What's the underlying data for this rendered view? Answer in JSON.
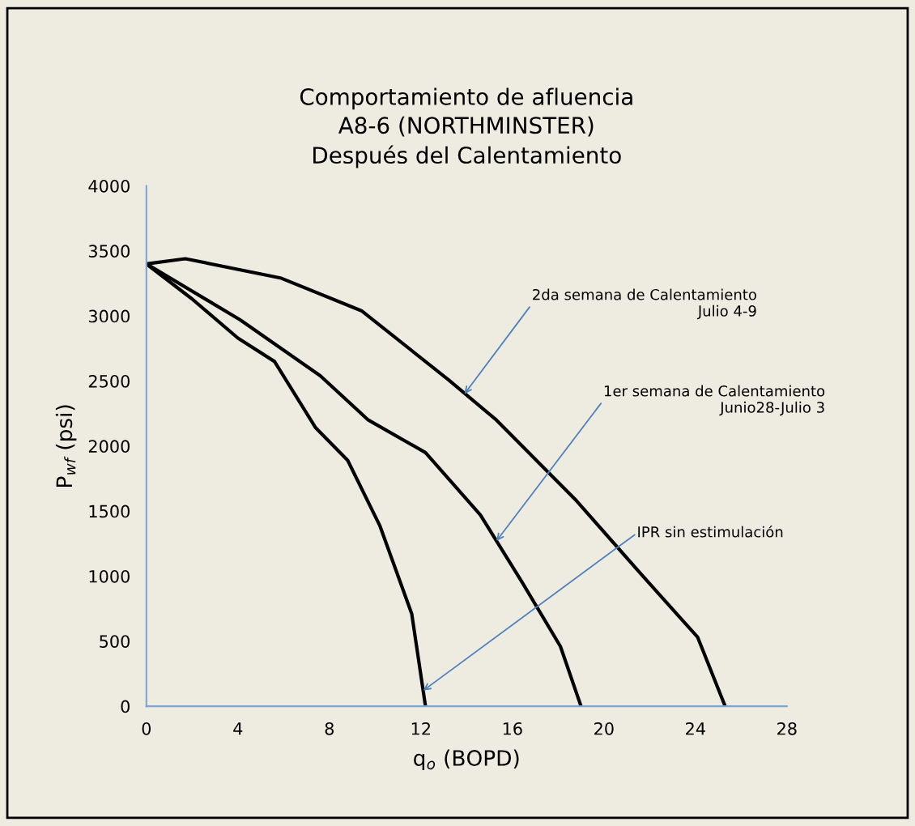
{
  "chart_data": {
    "type": "line",
    "title": "Comportamiento de afluencia\nA8-6 (NORTHMINSTER)\nDespués del Calentamiento",
    "xlabel": "q$_{o}$ (BOPD)",
    "ylabel": "P$_{wf}$ (psi)",
    "series": [
      {
        "color": "#000000",
        "x": [
          0,
          1.7,
          5.9,
          9.4,
          13.2,
          15.3,
          18.8,
          21.6,
          24.1,
          25.3
        ],
        "values": [
          3400,
          3440,
          3290,
          3040,
          2510,
          2200,
          1580,
          1020,
          530,
          0
        ]
      },
      {
        "color": "#000000",
        "x": [
          0,
          4.1,
          7.6,
          9.7,
          12.2,
          14.6,
          16.4,
          18.1,
          19
        ],
        "values": [
          3400,
          2970,
          2540,
          2200,
          1950,
          1470,
          960,
          460,
          0
        ]
      },
      {
        "color": "#000000",
        "x": [
          0,
          2,
          4,
          5.6,
          7.4,
          8.8,
          10.2,
          11.6,
          12.2
        ],
        "values": [
          3400,
          3130,
          2830,
          2650,
          2140,
          1890,
          1390,
          710,
          0
        ]
      }
    ],
    "annotations": [
      {
        "text": "2da semana de Calentamiento\nJulio 4-9",
        "x": 13.9,
        "y": 2400
      },
      {
        "text": "1er semana de Calentamiento\nJunio28-Julio 3",
        "x": 15.3,
        "y": 1270
      },
      {
        "text": "IPR sin estimulación",
        "x": 12.1,
        "y": 120
      }
    ],
    "xlim": [
      0,
      28
    ],
    "ylim": [
      0,
      4000
    ],
    "xticks": [
      0,
      4,
      8,
      12,
      16,
      20,
      24,
      28
    ],
    "yticks": [
      0,
      500,
      1000,
      1500,
      2000,
      2500,
      3000,
      3500,
      4000
    ],
    "grid": false,
    "legend": false,
    "marker": "none",
    "line_style": "solid"
  }
}
